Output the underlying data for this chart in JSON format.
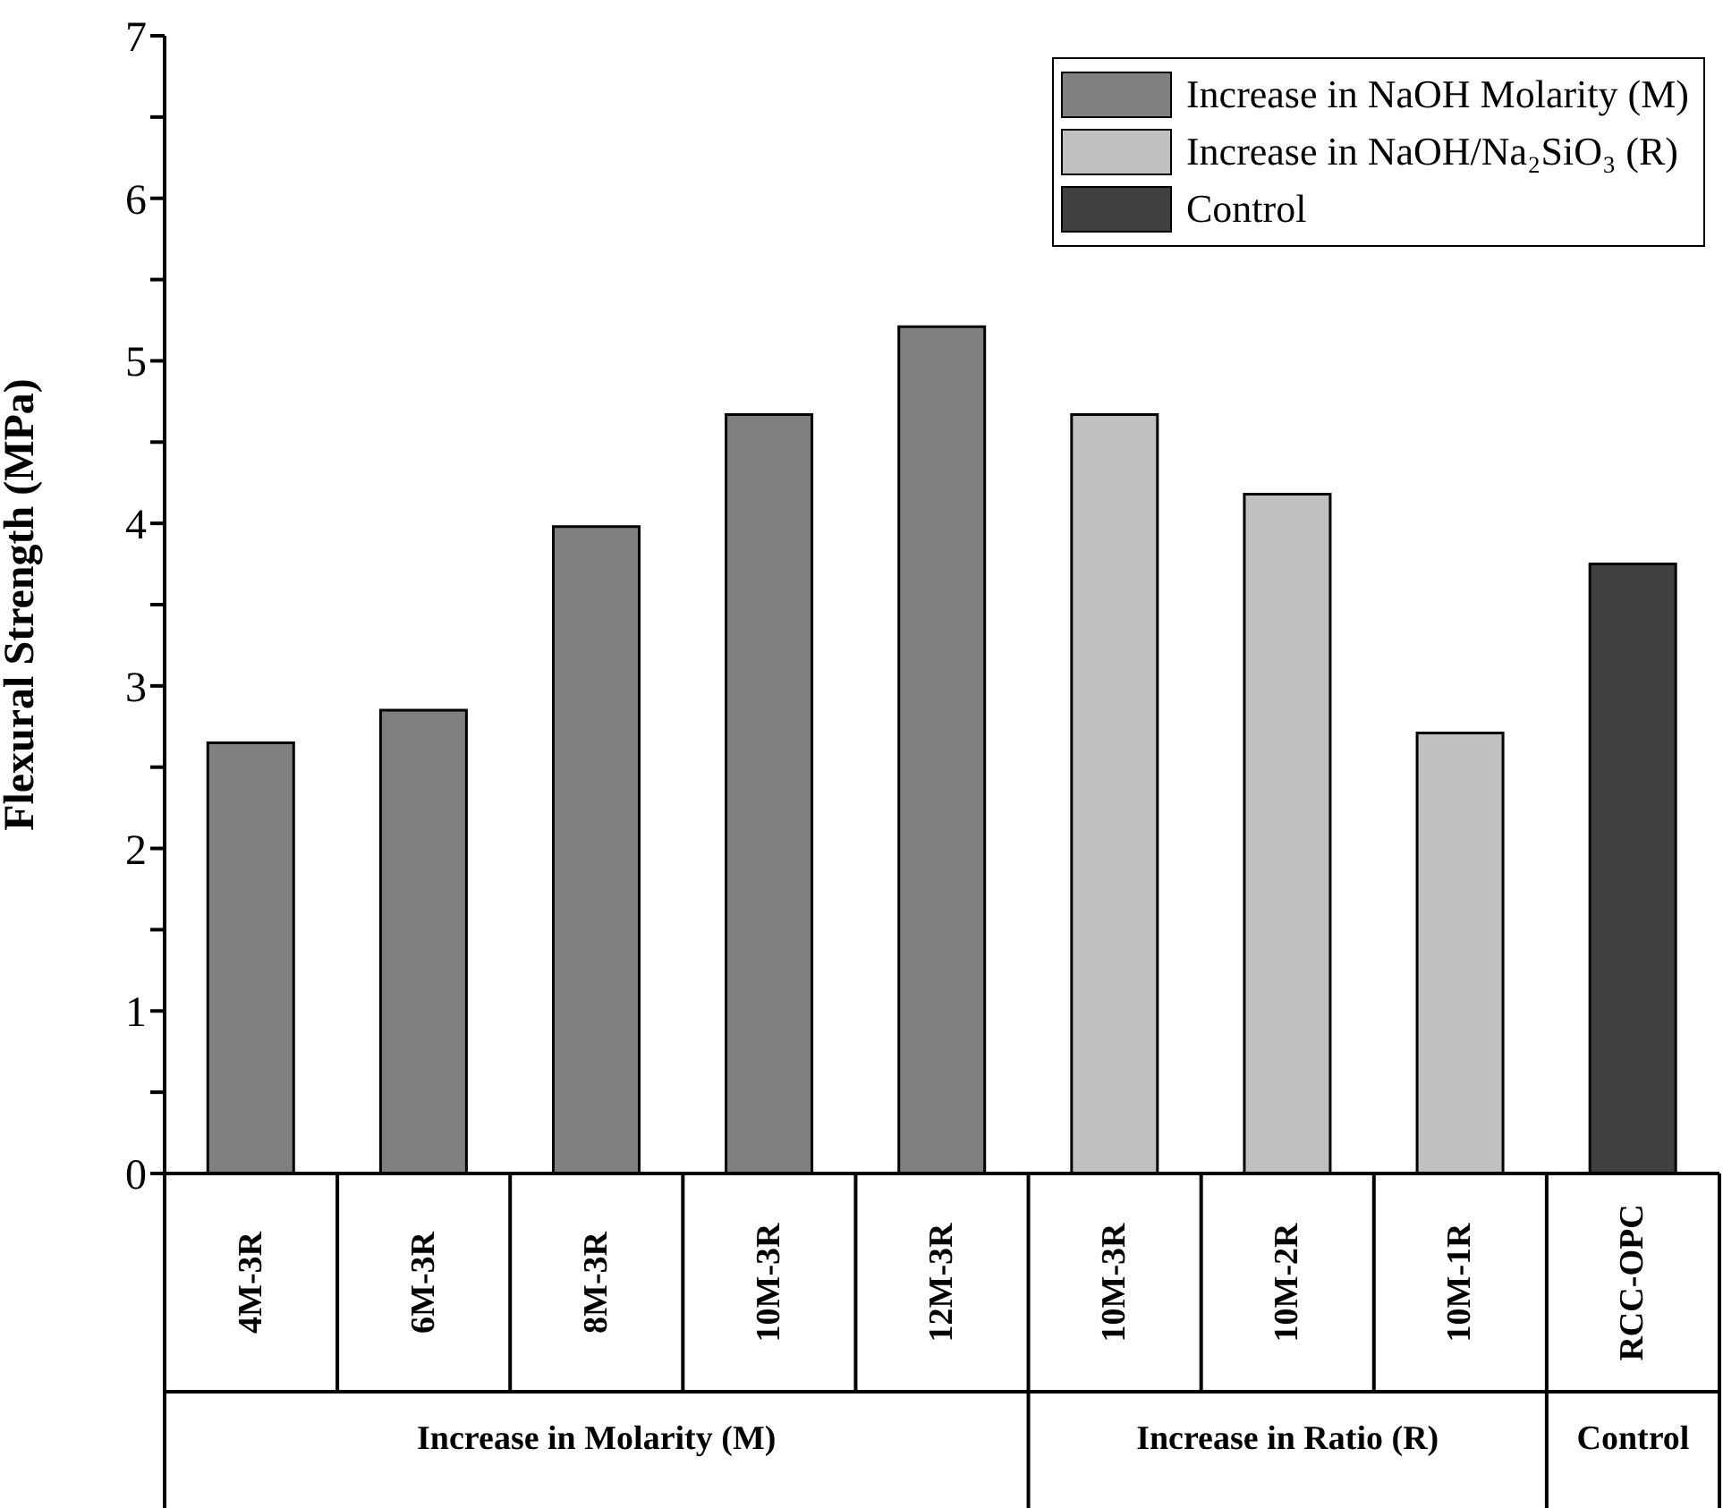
{
  "chart_data": {
    "type": "bar",
    "ylabel": "Flexural Strength (MPa)",
    "categories": [
      "4M-3R",
      "6M-3R",
      "8M-3R",
      "10M-3R",
      "12M-3R",
      "10M-3R",
      "10M-2R",
      "10M-1R",
      "RCC-OPC"
    ],
    "series": [
      {
        "name": "Increase in NaOH Molarity (M)",
        "color": "#808080",
        "values": [
          2.65,
          2.85,
          3.98,
          4.67,
          5.21,
          null,
          null,
          null,
          null
        ]
      },
      {
        "name": "Increase in NaOH/Na₂SiO₃ (R)",
        "color": "#c0c0c0",
        "values": [
          null,
          null,
          null,
          null,
          null,
          4.67,
          4.18,
          2.71,
          null
        ]
      },
      {
        "name": "Control",
        "color": "#404040",
        "values": [
          null,
          null,
          null,
          null,
          null,
          null,
          null,
          null,
          3.75
        ]
      }
    ],
    "annotations": [
      "Increase in Molarity (M)",
      "Increase in Ratio (R)",
      "Control"
    ],
    "ylim": [
      0,
      7
    ],
    "yticks": [
      0,
      {
        "value": 0.5,
        "label": null
      },
      1,
      {
        "value": 1.5,
        "label": null
      },
      2,
      {
        "value": 2.5,
        "label": null
      },
      3,
      {
        "value": 3.5,
        "label": null
      },
      4,
      {
        "value": 4.5,
        "label": null
      },
      5,
      {
        "value": 5.5,
        "label": null
      },
      6,
      {
        "value": 6.5,
        "label": null
      },
      7
    ],
    "legend": "top right"
  }
}
